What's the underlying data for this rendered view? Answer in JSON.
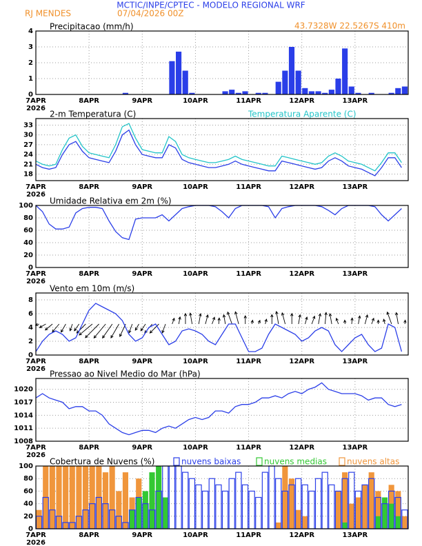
{
  "header": {
    "title": "MCTIC/INPE/CPTEC - MODELO REGIONAL WRF",
    "station": "RJ MENDES",
    "run": "07/04/2026 00Z",
    "location": "43.7328W 22.5267S 410m"
  },
  "x_axis": {
    "x": [
      0,
      3,
      6,
      9,
      12,
      15,
      18,
      21,
      24,
      27,
      30,
      33,
      36,
      39,
      42,
      45,
      48,
      51,
      54,
      57,
      60,
      63,
      66,
      69,
      72,
      75,
      78,
      81,
      84,
      87,
      90,
      93,
      96,
      99,
      102,
      105,
      108,
      111,
      114,
      117,
      120,
      123,
      126,
      129,
      132,
      135,
      138,
      141,
      144,
      147,
      150,
      153,
      156,
      159,
      162,
      165
    ],
    "xlim": [
      0,
      168
    ],
    "xticks": [
      {
        "value": 0,
        "label": "7APR"
      },
      {
        "value": 24,
        "label": "8APR"
      },
      {
        "value": 48,
        "label": "9APR"
      },
      {
        "value": 72,
        "label": "10APR"
      },
      {
        "value": 96,
        "label": "11APR"
      },
      {
        "value": 120,
        "label": "12APR"
      },
      {
        "value": 144,
        "label": "13APR"
      }
    ],
    "year": "2026"
  },
  "chart_data": [
    {
      "type": "bar",
      "title": "Precipitacao (mm/h)",
      "color": "#2a3ee8",
      "ylim": [
        0,
        4
      ],
      "yticks": [
        0,
        1,
        2,
        3,
        4
      ],
      "grid": true,
      "values": [
        0,
        0,
        0,
        0,
        0,
        0,
        0,
        0,
        0,
        0,
        0,
        0,
        0,
        0.1,
        0,
        0,
        0,
        0,
        0,
        0,
        2.1,
        2.7,
        1.5,
        0.1,
        0,
        0,
        0,
        0,
        0.2,
        0.3,
        0.1,
        0.2,
        0,
        0.1,
        0.1,
        0,
        0.8,
        1.5,
        3.0,
        1.5,
        0.4,
        0.2,
        0.2,
        0.1,
        0.3,
        1.0,
        2.9,
        0.5,
        0.1,
        0,
        0.1,
        0,
        0,
        0.1,
        0.4,
        0.5
      ]
    },
    {
      "type": "line",
      "ylim": [
        16,
        35
      ],
      "yticks": [
        18,
        21,
        24,
        27,
        30,
        33
      ],
      "grid": true,
      "series": [
        {
          "name": "2-m Temperatura (C)",
          "color": "#2a3ee8",
          "values": [
            21,
            20,
            19.5,
            20,
            24,
            27,
            28,
            25,
            23,
            22.5,
            22,
            21.5,
            25,
            30,
            31.5,
            27,
            24,
            23.5,
            23,
            23,
            27,
            26,
            22.5,
            21.5,
            21,
            20.5,
            20,
            20,
            20.5,
            21,
            22,
            21,
            20.5,
            20,
            19.5,
            19,
            19,
            22,
            21.5,
            21,
            20.5,
            20,
            19.5,
            20,
            22,
            23,
            22,
            20.5,
            20,
            19.5,
            18.5,
            17.5,
            20,
            23,
            23,
            20
          ]
        },
        {
          "name": "Temperatura Aparente (C)",
          "color": "#22c4c8",
          "values": [
            22,
            21,
            20.5,
            21,
            25.5,
            29,
            30,
            26.5,
            24.5,
            24,
            23.5,
            23,
            27,
            32.5,
            33.5,
            29,
            25.5,
            25,
            24.5,
            24.5,
            29.5,
            28,
            24,
            23,
            22.5,
            22,
            21.5,
            21.5,
            22,
            22.5,
            23.5,
            22.5,
            22,
            21.5,
            21,
            20.5,
            20.5,
            23.5,
            23,
            22.5,
            22,
            21.5,
            21,
            21.5,
            23.5,
            24.5,
            23.5,
            22,
            21.5,
            21,
            20,
            19,
            21.5,
            24.5,
            24.5,
            21.5
          ]
        }
      ]
    },
    {
      "type": "line",
      "title": "Umidade Relativa em 2m (%)",
      "ylim": [
        0,
        100
      ],
      "yticks": [
        0,
        20,
        40,
        60,
        80,
        100
      ],
      "grid": true,
      "series": [
        {
          "color": "#2a3ee8",
          "values": [
            100,
            90,
            70,
            62,
            62,
            65,
            88,
            95,
            97,
            97,
            95,
            75,
            58,
            48,
            45,
            78,
            80,
            80,
            80,
            85,
            75,
            85,
            95,
            98,
            100,
            100,
            100,
            98,
            90,
            80,
            95,
            100,
            100,
            100,
            100,
            98,
            80,
            95,
            98,
            100,
            100,
            100,
            100,
            98,
            92,
            85,
            95,
            100,
            100,
            100,
            100,
            98,
            85,
            75,
            85,
            95
          ]
        }
      ]
    },
    {
      "type": "wind",
      "title": "Vento em 10m (m/s)",
      "ylim": [
        0,
        9
      ],
      "yticks": [
        0,
        2,
        4,
        6,
        8
      ],
      "grid": true,
      "series": [
        {
          "color": "#2a3ee8",
          "values": [
            0.5,
            2,
            3,
            3.5,
            3,
            2,
            2.5,
            4.5,
            6.5,
            7.5,
            7,
            6.5,
            6,
            5,
            3,
            2,
            2.5,
            4,
            4.5,
            3,
            1.5,
            2,
            3.5,
            3.8,
            3.5,
            3,
            2,
            1.5,
            3,
            4.5,
            4.5,
            2.5,
            0.5,
            0.5,
            1,
            3,
            4.5,
            4,
            3.5,
            3,
            2,
            2.5,
            3.5,
            4,
            3.5,
            1.5,
            0.5,
            1.5,
            2.5,
            3,
            1.5,
            0.5,
            1,
            4.5,
            4,
            0.5
          ]
        }
      ],
      "direction": [
        250,
        240,
        230,
        220,
        210,
        200,
        215,
        225,
        230,
        225,
        220,
        215,
        210,
        205,
        200,
        210,
        215,
        220,
        225,
        200,
        20,
        10,
        0,
        350,
        10,
        15,
        20,
        5,
        350,
        340,
        345,
        0,
        10,
        20,
        15,
        0,
        350,
        345,
        0,
        10,
        15,
        20,
        10,
        5,
        350,
        340,
        355,
        5,
        10,
        15,
        20,
        0,
        345,
        340,
        350,
        5
      ],
      "arrow_color": "#000000"
    },
    {
      "type": "line",
      "title": "Pressao ao Nivel Medio do Mar (hPa)",
      "ylim": [
        1008,
        1022.5
      ],
      "yticks": [
        1008,
        1011,
        1014,
        1017,
        1020
      ],
      "grid": true,
      "series": [
        {
          "color": "#2a3ee8",
          "values": [
            1018,
            1019,
            1018,
            1017.5,
            1017,
            1015.5,
            1016,
            1016,
            1015,
            1015,
            1014,
            1012,
            1011,
            1010,
            1009.5,
            1010,
            1010.5,
            1010.5,
            1010,
            1011,
            1011.5,
            1011,
            1012,
            1013,
            1013.5,
            1013,
            1013.5,
            1015,
            1015,
            1014.5,
            1016,
            1016.5,
            1016.5,
            1017,
            1018,
            1018,
            1018.5,
            1018,
            1019,
            1019.5,
            1019,
            1020,
            1020.5,
            1021.5,
            1020,
            1019.5,
            1019,
            1019,
            1019,
            1018.5,
            1017.5,
            1018,
            1018,
            1016.5,
            1016,
            1016.5
          ]
        }
      ]
    },
    {
      "type": "bar",
      "title": "Cobertura de Nuvens (%)",
      "ylim": [
        0,
        100
      ],
      "yticks": [
        0,
        20,
        40,
        60,
        80,
        100
      ],
      "grid": true,
      "series": [
        {
          "name": "nuvens baixas",
          "color": "#2a3ee8",
          "outline": true,
          "values": [
            20,
            50,
            30,
            20,
            10,
            10,
            20,
            30,
            40,
            50,
            40,
            30,
            20,
            10,
            30,
            50,
            40,
            30,
            60,
            100,
            100,
            100,
            90,
            80,
            70,
            60,
            80,
            70,
            60,
            80,
            90,
            70,
            60,
            50,
            90,
            100,
            80,
            60,
            70,
            80,
            70,
            60,
            80,
            90,
            70,
            60,
            80,
            90,
            60,
            70,
            80,
            50,
            40,
            60,
            50,
            30
          ]
        },
        {
          "name": "nuvens medias",
          "color": "#33c833",
          "outline": false,
          "values": [
            0,
            0,
            0,
            0,
            0,
            0,
            0,
            0,
            0,
            0,
            0,
            0,
            0,
            0,
            30,
            50,
            60,
            90,
            100,
            50,
            0,
            0,
            0,
            0,
            0,
            0,
            0,
            0,
            0,
            0,
            0,
            0,
            0,
            0,
            0,
            0,
            0,
            0,
            0,
            0,
            0,
            0,
            0,
            0,
            0,
            0,
            10,
            0,
            0,
            0,
            0,
            20,
            50,
            40,
            20,
            0
          ]
        },
        {
          "name": "nuvens altas",
          "color": "#f0963c",
          "outline": false,
          "values": [
            30,
            100,
            100,
            100,
            100,
            100,
            100,
            100,
            100,
            100,
            90,
            100,
            60,
            90,
            50,
            80,
            40,
            60,
            20,
            0,
            0,
            0,
            0,
            0,
            0,
            0,
            0,
            0,
            0,
            0,
            0,
            0,
            0,
            0,
            0,
            0,
            10,
            100,
            80,
            30,
            20,
            0,
            0,
            0,
            0,
            60,
            90,
            40,
            50,
            70,
            90,
            60,
            30,
            70,
            60,
            20
          ]
        }
      ]
    }
  ]
}
